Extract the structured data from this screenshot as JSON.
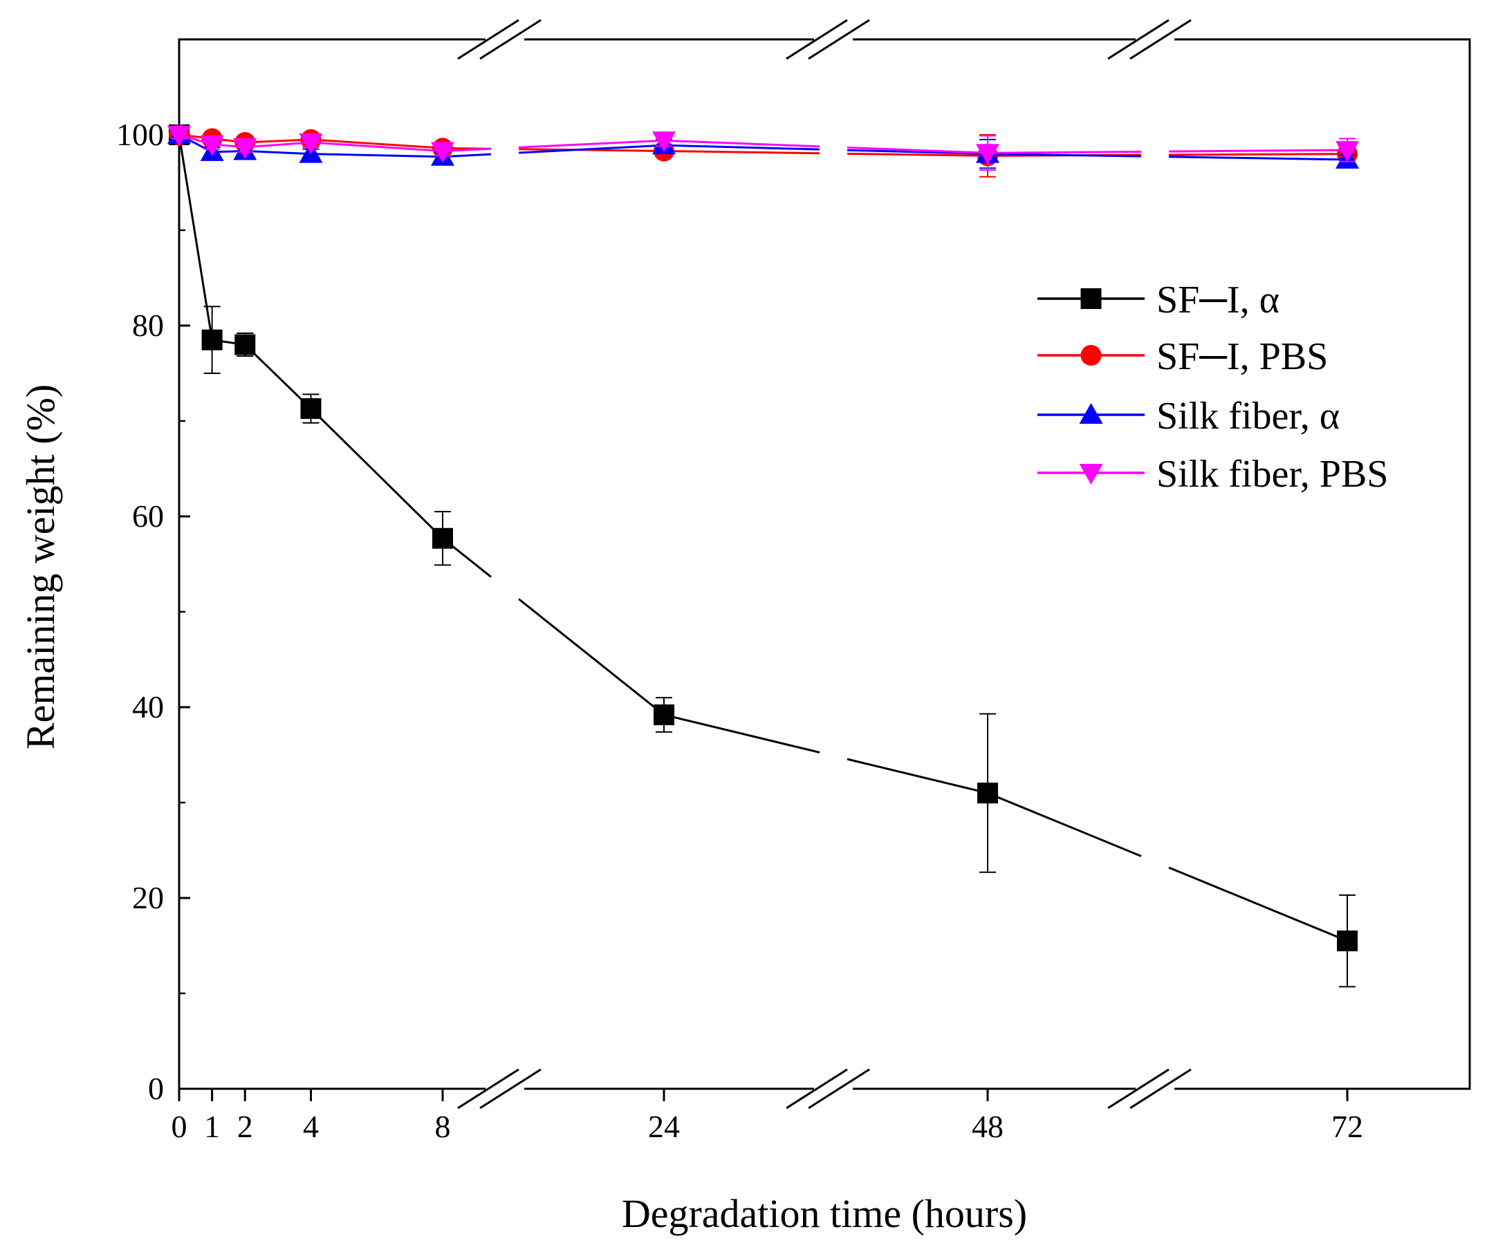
{
  "chart_data": {
    "type": "line",
    "title": "",
    "xlabel": "Degradation time (hours)",
    "ylabel": "Remaining weight (%)",
    "ylim": [
      0,
      110
    ],
    "yticks": [
      0,
      20,
      40,
      60,
      80,
      100
    ],
    "xticks": [
      0,
      1,
      2,
      4,
      8,
      24,
      48,
      72
    ],
    "x_axis_breaks": [
      "8-24",
      "24-48",
      "48-72"
    ],
    "legend_position": "right, upper-middle",
    "series": [
      {
        "name": "SF─I, α",
        "color": "#000000",
        "marker": "square",
        "x": [
          0,
          1,
          2,
          4,
          8,
          24,
          48,
          72
        ],
        "values": [
          100,
          78.5,
          78,
          71.3,
          57.7,
          39.2,
          31,
          15.5
        ],
        "errors": [
          0.5,
          3.5,
          1.2,
          1.5,
          2.8,
          1.8,
          8.3,
          4.8
        ]
      },
      {
        "name": "SF─I, PBS",
        "color": "#ff0000",
        "marker": "circle",
        "x": [
          0,
          1,
          2,
          4,
          8,
          24,
          48,
          72
        ],
        "values": [
          100,
          99.6,
          99.2,
          99.5,
          98.6,
          98.3,
          97.8,
          98
        ],
        "errors": [
          0.3,
          0.4,
          0.4,
          0.5,
          0.5,
          0.5,
          2.2,
          0.6
        ]
      },
      {
        "name": "Silk fiber, α",
        "color": "#0000ff",
        "marker": "triangle-up",
        "x": [
          0,
          1,
          2,
          4,
          8,
          24,
          48,
          72
        ],
        "values": [
          100,
          98.2,
          98.3,
          98,
          97.7,
          98.9,
          98,
          97.4
        ],
        "errors": [
          0.4,
          0.5,
          0.5,
          0.5,
          0.5,
          0.6,
          1.5,
          0.5
        ]
      },
      {
        "name": "Silk fiber, PBS",
        "color": "#ff00ff",
        "marker": "triangle-down",
        "x": [
          0,
          1,
          2,
          4,
          8,
          24,
          48,
          72
        ],
        "values": [
          100,
          99,
          98.7,
          99.2,
          98.3,
          99.4,
          98.1,
          98.4
        ],
        "errors": [
          0.4,
          0.5,
          0.5,
          0.5,
          0.5,
          0.6,
          1.8,
          1.2
        ]
      }
    ]
  }
}
